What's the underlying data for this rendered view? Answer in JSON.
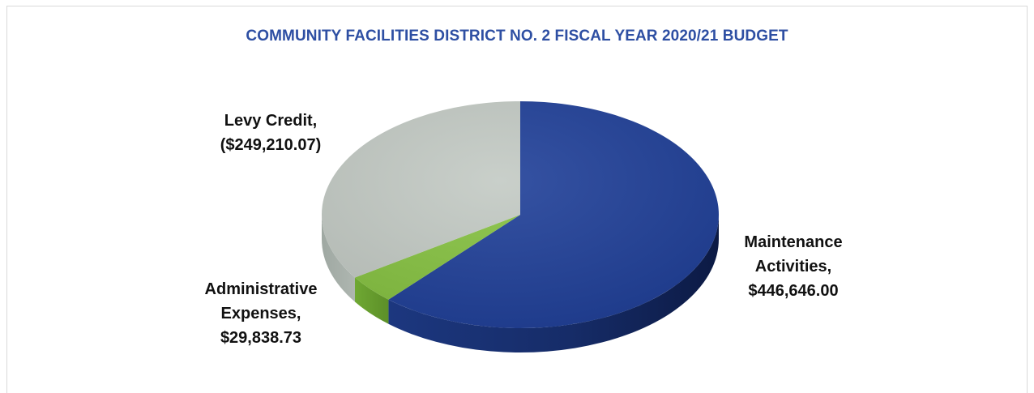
{
  "chart_data": {
    "type": "pie",
    "style": "3d",
    "title": "COMMUNITY FACILITIES DISTRICT NO. 2 FISCAL YEAR 2020/21 BUDGET",
    "legend": "none",
    "slices": [
      {
        "name": "Maintenance Activities",
        "value": 446646.0,
        "label_lines": [
          "Maintenance",
          "Activities,",
          "$446,646.00"
        ],
        "color": "#1f3f98"
      },
      {
        "name": "Administrative Expenses",
        "value": 29838.73,
        "label_lines": [
          "Administrative",
          "Expenses,",
          "$29,838.73"
        ],
        "color": "#86c241"
      },
      {
        "name": "Levy Credit",
        "value": 249210.07,
        "label_lines": [
          "Levy Credit,",
          "($249,210.07)"
        ],
        "color": "#c3cac4"
      }
    ]
  },
  "colors": {
    "title": "#2e4fa3",
    "frame_border": "#d9d9d9"
  }
}
